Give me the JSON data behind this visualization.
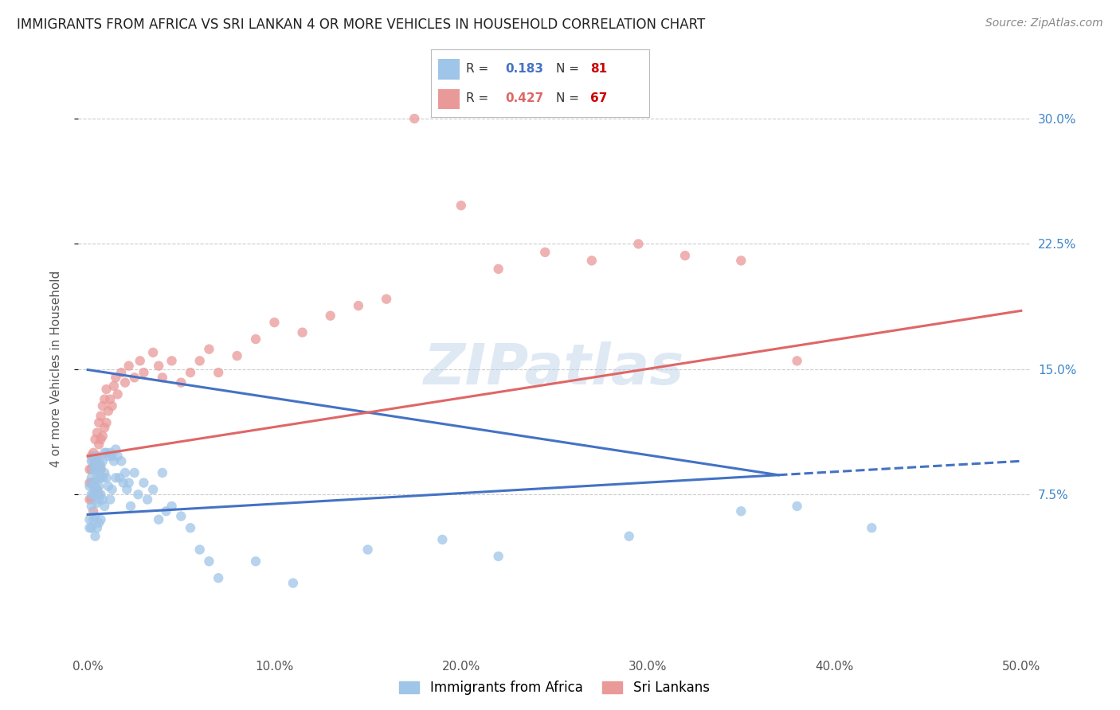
{
  "title": "IMMIGRANTS FROM AFRICA VS SRI LANKAN 4 OR MORE VEHICLES IN HOUSEHOLD CORRELATION CHART",
  "source": "Source: ZipAtlas.com",
  "xlabel_ticks": [
    "0.0%",
    "10.0%",
    "20.0%",
    "30.0%",
    "40.0%",
    "50.0%"
  ],
  "xlabel_vals": [
    0.0,
    0.1,
    0.2,
    0.3,
    0.4,
    0.5
  ],
  "ylabel_ticks": [
    "7.5%",
    "15.0%",
    "22.5%",
    "30.0%"
  ],
  "ylabel_vals": [
    0.075,
    0.15,
    0.225,
    0.3
  ],
  "xlim": [
    -0.005,
    0.505
  ],
  "ylim": [
    -0.02,
    0.32
  ],
  "ylabel": "4 or more Vehicles in Household",
  "legend_label_blue": "Immigrants from Africa",
  "legend_label_pink": "Sri Lankans",
  "R_blue": 0.183,
  "N_blue": 81,
  "R_pink": 0.427,
  "N_pink": 67,
  "color_blue": "#9fc5e8",
  "color_pink": "#ea9999",
  "trendline_blue": "#4472c4",
  "trendline_pink": "#e06666",
  "watermark": "ZIPatlas",
  "trendline_blue_x0": 0.0,
  "trendline_blue_y0": 0.063,
  "trendline_blue_x1": 0.5,
  "trendline_blue_y1": 0.095,
  "trendline_blue_solid_end": 0.37,
  "trendline_pink_x0": 0.0,
  "trendline_pink_y0": 0.098,
  "trendline_pink_x1": 0.5,
  "trendline_pink_y1": 0.185,
  "blue_x": [
    0.001,
    0.001,
    0.001,
    0.002,
    0.002,
    0.002,
    0.002,
    0.002,
    0.003,
    0.003,
    0.003,
    0.003,
    0.003,
    0.004,
    0.004,
    0.004,
    0.004,
    0.004,
    0.004,
    0.005,
    0.005,
    0.005,
    0.005,
    0.005,
    0.006,
    0.006,
    0.006,
    0.006,
    0.006,
    0.007,
    0.007,
    0.007,
    0.007,
    0.008,
    0.008,
    0.008,
    0.009,
    0.009,
    0.009,
    0.01,
    0.01,
    0.011,
    0.011,
    0.012,
    0.012,
    0.013,
    0.013,
    0.014,
    0.015,
    0.015,
    0.016,
    0.017,
    0.018,
    0.019,
    0.02,
    0.021,
    0.022,
    0.023,
    0.025,
    0.027,
    0.03,
    0.032,
    0.035,
    0.038,
    0.04,
    0.042,
    0.045,
    0.05,
    0.055,
    0.06,
    0.065,
    0.07,
    0.09,
    0.11,
    0.15,
    0.19,
    0.22,
    0.29,
    0.35,
    0.38,
    0.42
  ],
  "blue_y": [
    0.08,
    0.06,
    0.055,
    0.095,
    0.085,
    0.075,
    0.068,
    0.055,
    0.095,
    0.09,
    0.08,
    0.075,
    0.06,
    0.098,
    0.09,
    0.082,
    0.075,
    0.062,
    0.05,
    0.092,
    0.085,
    0.078,
    0.07,
    0.055,
    0.095,
    0.088,
    0.08,
    0.072,
    0.058,
    0.092,
    0.085,
    0.075,
    0.06,
    0.095,
    0.085,
    0.072,
    0.1,
    0.088,
    0.068,
    0.1,
    0.085,
    0.098,
    0.08,
    0.1,
    0.072,
    0.098,
    0.078,
    0.095,
    0.102,
    0.085,
    0.098,
    0.085,
    0.095,
    0.082,
    0.088,
    0.078,
    0.082,
    0.068,
    0.088,
    0.075,
    0.082,
    0.072,
    0.078,
    0.06,
    0.088,
    0.065,
    0.068,
    0.062,
    0.055,
    0.042,
    0.035,
    0.025,
    0.035,
    0.022,
    0.042,
    0.048,
    0.038,
    0.05,
    0.065,
    0.068,
    0.055
  ],
  "pink_x": [
    0.001,
    0.001,
    0.001,
    0.002,
    0.002,
    0.002,
    0.002,
    0.003,
    0.003,
    0.003,
    0.003,
    0.004,
    0.004,
    0.004,
    0.005,
    0.005,
    0.005,
    0.006,
    0.006,
    0.006,
    0.006,
    0.007,
    0.007,
    0.007,
    0.008,
    0.008,
    0.009,
    0.009,
    0.01,
    0.01,
    0.011,
    0.012,
    0.013,
    0.014,
    0.015,
    0.016,
    0.018,
    0.02,
    0.022,
    0.025,
    0.028,
    0.03,
    0.035,
    0.038,
    0.04,
    0.045,
    0.05,
    0.055,
    0.06,
    0.065,
    0.07,
    0.08,
    0.09,
    0.1,
    0.115,
    0.13,
    0.145,
    0.16,
    0.175,
    0.2,
    0.22,
    0.245,
    0.27,
    0.295,
    0.32,
    0.35,
    0.38
  ],
  "pink_y": [
    0.09,
    0.082,
    0.072,
    0.098,
    0.09,
    0.082,
    0.072,
    0.1,
    0.092,
    0.082,
    0.065,
    0.108,
    0.095,
    0.078,
    0.112,
    0.098,
    0.078,
    0.118,
    0.105,
    0.092,
    0.075,
    0.122,
    0.108,
    0.09,
    0.128,
    0.11,
    0.132,
    0.115,
    0.138,
    0.118,
    0.125,
    0.132,
    0.128,
    0.14,
    0.145,
    0.135,
    0.148,
    0.142,
    0.152,
    0.145,
    0.155,
    0.148,
    0.16,
    0.152,
    0.145,
    0.155,
    0.142,
    0.148,
    0.155,
    0.162,
    0.148,
    0.158,
    0.168,
    0.178,
    0.172,
    0.182,
    0.188,
    0.192,
    0.3,
    0.248,
    0.21,
    0.22,
    0.215,
    0.225,
    0.218,
    0.215,
    0.155
  ]
}
